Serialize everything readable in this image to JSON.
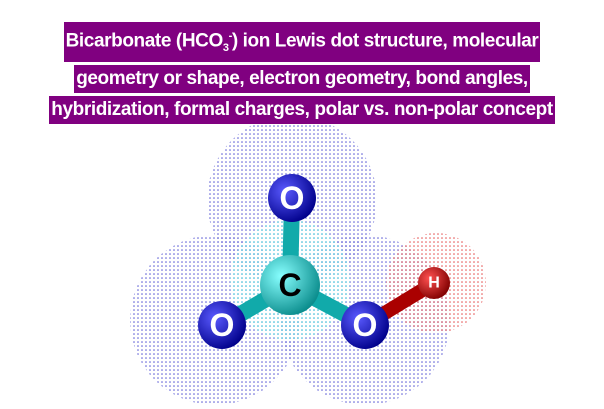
{
  "header": {
    "title_start": "Bicarbonate (HCO",
    "title_sub": "3",
    "title_sup": "-",
    "title_end": ") ion Lewis dot structure, molecular",
    "line2": "geometry or shape, electron geometry, bond angles,",
    "line3": "hybridization, formal charges, polar vs. non-polar concept"
  },
  "nodes": [
    {
      "label": "O"
    },
    {
      "label": "C"
    },
    {
      "label": "O"
    },
    {
      "label": "O"
    },
    {
      "label": "H"
    }
  ]
}
